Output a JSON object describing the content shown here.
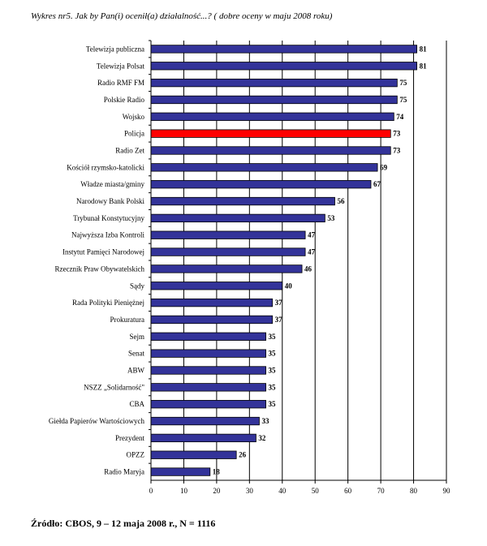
{
  "title": "Wykres nr5. Jak by Pan(i) ocenił(a) działalność...? ( dobre oceny w maju 2008 roku)",
  "source": "Źródło: CBOS, 9 – 12 maja 2008 r., N = 1116",
  "colors": {
    "bar": "#333399",
    "highlight": "#ff0000",
    "frame": "#000000"
  },
  "chart_data": {
    "type": "bar",
    "orientation": "horizontal",
    "categories": [
      "Telewizja publiczna",
      "Telewizja Polsat",
      "Radio RMF FM",
      "Polskie Radio",
      "Wojsko",
      "Policja",
      "Radio Zet",
      "Kościół rzymsko-katolicki",
      "Władze miasta/gminy",
      "Narodowy Bank Polski",
      "Trybunał Konstytucyjny",
      "Najwyższa Izba Kontroli",
      "Instytut Pamięci Narodowej",
      "Rzecznik Praw Obywatelskich",
      "Sądy",
      "Rada Polityki Pieniężnej",
      "Prokuratura",
      "Sejm",
      "Senat",
      "ABW",
      "NSZZ „Solidarność\"",
      "CBA",
      "Giełda Papierów Wartościowych",
      "Prezydent",
      "OPZZ",
      "Radio Maryja"
    ],
    "values": [
      81,
      81,
      75,
      75,
      74,
      73,
      73,
      69,
      67,
      56,
      53,
      47,
      47,
      46,
      40,
      37,
      37,
      35,
      35,
      35,
      35,
      35,
      33,
      32,
      26,
      18
    ],
    "highlight_category": "Policja",
    "xlim": [
      0,
      90
    ],
    "xticks": [
      0,
      10,
      20,
      30,
      40,
      50,
      60,
      70,
      80,
      90
    ],
    "grid": "vertical lines"
  }
}
